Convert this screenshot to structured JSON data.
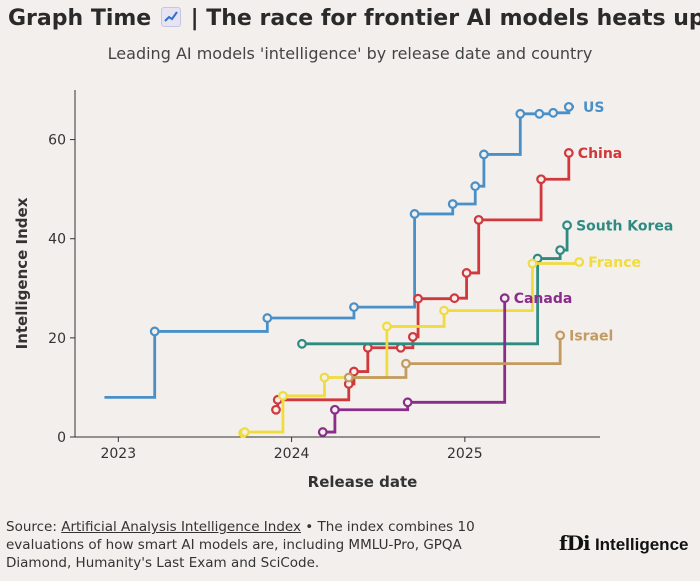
{
  "header": {
    "title_part1": "Graph Time",
    "title_part2": "| The race for frontier AI models heats up",
    "emoji_name": "chart-increasing-icon",
    "subtitle": "Leading AI models 'intelligence' by release date and country"
  },
  "footer": {
    "source_prefix": "Source: ",
    "source_link": "Artificial Analysis Intelligence Index",
    "source_text": " • The index combines 10 evaluations of how smart AI models are, including MMLU-Pro, GPQA Diamond, Humanity's Last Exam and SciCode.",
    "logo_mark": "fDi",
    "logo_word": "Intelligence"
  },
  "chart_data": {
    "type": "line",
    "step": true,
    "title": "",
    "xlabel": "Release date",
    "ylabel": "Intelligence Index",
    "x_ticks": [
      2023,
      2024,
      2025
    ],
    "x_range": [
      2022.75,
      2025.78
    ],
    "y_ticks": [
      0,
      20,
      40,
      60
    ],
    "ylim": [
      0,
      70
    ],
    "grid": false,
    "legend": "direct labels at line ends",
    "series": [
      {
        "name": "US",
        "color": "#4a90c8",
        "show_start_marker": false,
        "extend_to": 2025.63,
        "points": [
          [
            2022.92,
            8
          ],
          [
            2023.21,
            21.3
          ],
          [
            2023.86,
            24
          ],
          [
            2024.36,
            26.2
          ],
          [
            2024.71,
            45
          ],
          [
            2024.93,
            47
          ],
          [
            2025.06,
            50.6
          ],
          [
            2025.11,
            57
          ],
          [
            2025.32,
            65.2
          ],
          [
            2025.43,
            65.2
          ],
          [
            2025.51,
            65.4
          ],
          [
            2025.6,
            66.6
          ]
        ]
      },
      {
        "name": "China",
        "color": "#d0383c",
        "show_start_marker": true,
        "extend_to": 2025.6,
        "points": [
          [
            2023.91,
            5.5
          ],
          [
            2023.92,
            7.5
          ],
          [
            2024.33,
            10.7
          ],
          [
            2024.36,
            13.2
          ],
          [
            2024.44,
            18
          ],
          [
            2024.63,
            18
          ],
          [
            2024.7,
            20.2
          ],
          [
            2024.73,
            27.9
          ],
          [
            2024.94,
            28
          ],
          [
            2025.01,
            33.1
          ],
          [
            2025.08,
            43.8
          ],
          [
            2025.44,
            52
          ],
          [
            2025.6,
            57.3
          ]
        ]
      },
      {
        "name": "South Korea",
        "color": "#2f8b82",
        "show_start_marker": true,
        "extend_to": 2025.59,
        "points": [
          [
            2024.06,
            18.8
          ],
          [
            2025.42,
            36
          ],
          [
            2025.55,
            37.7
          ],
          [
            2025.59,
            42.7
          ]
        ]
      },
      {
        "name": "France",
        "color": "#f0dc3c",
        "show_start_marker": true,
        "extend_to": 2025.66,
        "points": [
          [
            2023.72,
            0.8
          ],
          [
            2023.73,
            1
          ],
          [
            2023.95,
            8.3
          ],
          [
            2024.19,
            12
          ],
          [
            2024.55,
            22.3
          ],
          [
            2024.88,
            25.5
          ],
          [
            2025.39,
            35
          ],
          [
            2025.66,
            35.3
          ]
        ]
      },
      {
        "name": "Canada",
        "color": "#8a2d8a",
        "show_start_marker": true,
        "extend_to": 2025.23,
        "points": [
          [
            2024.18,
            1
          ],
          [
            2024.25,
            5.5
          ],
          [
            2024.67,
            7
          ],
          [
            2025.23,
            28
          ]
        ]
      },
      {
        "name": "Israel",
        "color": "#c39a5f",
        "show_start_marker": true,
        "extend_to": 2025.55,
        "points": [
          [
            2024.33,
            12
          ],
          [
            2024.66,
            14.8
          ],
          [
            2025.55,
            20.5
          ]
        ]
      }
    ]
  }
}
